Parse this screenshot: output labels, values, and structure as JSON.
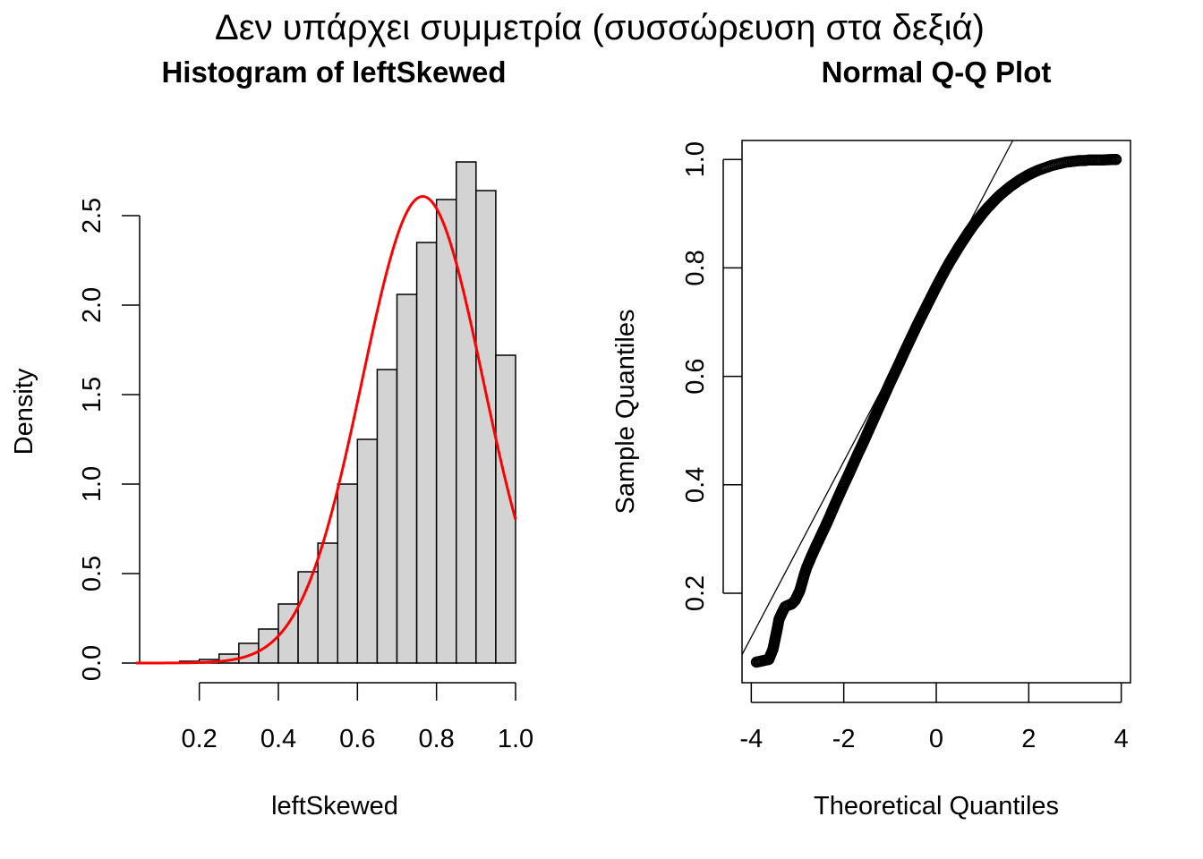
{
  "page": {
    "title": "Δεν υπάρχει συμμετρία (συσσώρευση στα δεξιά)"
  },
  "chart_data": [
    {
      "type": "bar",
      "title": "Histogram of leftSkewed",
      "xlabel": "leftSkewed",
      "ylabel": "Density",
      "xlim": [
        0.04,
        1.0
      ],
      "ylim": [
        0,
        2.8
      ],
      "x_ticks": [
        "0.2",
        "0.4",
        "0.6",
        "0.8",
        "1.0"
      ],
      "y_ticks": [
        "0.0",
        "0.5",
        "1.0",
        "1.5",
        "2.0",
        "2.5"
      ],
      "bin_edges": [
        0.15,
        0.2,
        0.25,
        0.3,
        0.35,
        0.4,
        0.45,
        0.5,
        0.55,
        0.6,
        0.65,
        0.7,
        0.75,
        0.8,
        0.85,
        0.9,
        0.95,
        1.0
      ],
      "values": [
        0.01,
        0.02,
        0.05,
        0.11,
        0.19,
        0.33,
        0.51,
        0.67,
        1.0,
        1.25,
        1.64,
        2.06,
        2.35,
        2.59,
        2.8,
        2.64,
        1.72
      ],
      "bar_color": "#d3d3d3",
      "curve": {
        "type": "normal-density",
        "mean": 0.765,
        "sd": 0.153,
        "x_range": [
          0.04,
          1.0
        ],
        "color": "#ff0000"
      }
    },
    {
      "type": "scatter",
      "title": "Normal Q-Q Plot",
      "xlabel": "Theoretical Quantiles",
      "ylabel": "Sample Quantiles",
      "xlim": [
        -4.2,
        4.2
      ],
      "ylim": [
        0.035,
        1.035
      ],
      "x_ticks": [
        "-4",
        "-2",
        "0",
        "2",
        "4"
      ],
      "y_ticks": [
        "0.2",
        "0.4",
        "0.6",
        "0.8",
        "1.0"
      ],
      "points": [
        [
          -3.89,
          0.073
        ],
        [
          -3.62,
          0.078
        ],
        [
          -3.53,
          0.097
        ],
        [
          -3.44,
          0.134
        ],
        [
          -3.4,
          0.152
        ],
        [
          -3.33,
          0.165
        ],
        [
          -3.27,
          0.175
        ],
        [
          -3.2,
          0.178
        ],
        [
          -3.13,
          0.18
        ],
        [
          -3.05,
          0.187
        ],
        [
          -3.0,
          0.196
        ],
        [
          -2.95,
          0.205
        ],
        [
          -2.9,
          0.22
        ],
        [
          -2.85,
          0.235
        ],
        [
          -2.8,
          0.248
        ],
        [
          -2.7,
          0.268
        ],
        [
          -2.6,
          0.287
        ],
        [
          -2.5,
          0.305
        ],
        [
          -2.4,
          0.323
        ],
        [
          -2.3,
          0.342
        ],
        [
          -2.2,
          0.362
        ],
        [
          -2.1,
          0.381
        ],
        [
          -2.0,
          0.4
        ],
        [
          -1.9,
          0.418
        ],
        [
          -1.8,
          0.437
        ],
        [
          -1.7,
          0.456
        ],
        [
          -1.6,
          0.474
        ],
        [
          -1.5,
          0.493
        ],
        [
          -1.4,
          0.512
        ],
        [
          -1.3,
          0.531
        ],
        [
          -1.2,
          0.55
        ],
        [
          -1.1,
          0.569
        ],
        [
          -1.0,
          0.588
        ],
        [
          -0.9,
          0.606
        ],
        [
          -0.8,
          0.624
        ],
        [
          -0.7,
          0.643
        ],
        [
          -0.6,
          0.661
        ],
        [
          -0.5,
          0.679
        ],
        [
          -0.4,
          0.697
        ],
        [
          -0.3,
          0.714
        ],
        [
          -0.2,
          0.731
        ],
        [
          -0.1,
          0.748
        ],
        [
          0.0,
          0.765
        ],
        [
          0.1,
          0.781
        ],
        [
          0.2,
          0.797
        ],
        [
          0.3,
          0.812
        ],
        [
          0.4,
          0.826
        ],
        [
          0.5,
          0.84
        ],
        [
          0.6,
          0.853
        ],
        [
          0.7,
          0.866
        ],
        [
          0.8,
          0.878
        ],
        [
          0.9,
          0.889
        ],
        [
          1.0,
          0.9
        ],
        [
          1.1,
          0.91
        ],
        [
          1.2,
          0.919
        ],
        [
          1.3,
          0.928
        ],
        [
          1.4,
          0.936
        ],
        [
          1.5,
          0.943
        ],
        [
          1.6,
          0.95
        ],
        [
          1.7,
          0.956
        ],
        [
          1.8,
          0.962
        ],
        [
          1.9,
          0.967
        ],
        [
          2.0,
          0.972
        ],
        [
          2.1,
          0.976
        ],
        [
          2.2,
          0.98
        ],
        [
          2.3,
          0.983
        ],
        [
          2.4,
          0.986
        ],
        [
          2.5,
          0.989
        ],
        [
          2.6,
          0.991
        ],
        [
          2.7,
          0.993
        ],
        [
          2.8,
          0.995
        ],
        [
          2.9,
          0.996
        ],
        [
          3.0,
          0.997
        ],
        [
          3.1,
          0.998
        ],
        [
          3.2,
          0.998
        ],
        [
          3.3,
          0.999
        ],
        [
          3.4,
          0.999
        ],
        [
          3.5,
          0.999
        ],
        [
          3.6,
          0.999
        ],
        [
          3.67,
          0.9995
        ],
        [
          3.89,
          1.0
        ]
      ],
      "reference_line": {
        "intercept": 0.767,
        "slope": 0.162
      }
    }
  ]
}
